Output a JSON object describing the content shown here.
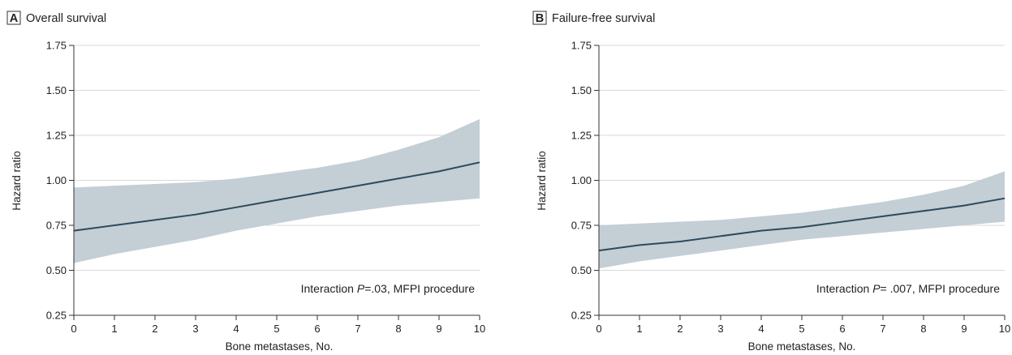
{
  "colors": {
    "band": "#c4ced5",
    "line": "#2d4a5a",
    "grid": "#d9d9d9",
    "axis": "#333333"
  },
  "chart_data": [
    {
      "type": "line",
      "panel_letter": "A",
      "title": "Overall survival",
      "xlabel": "Bone metastases, No.",
      "ylabel": "Hazard ratio",
      "xlim": [
        0,
        10
      ],
      "ylim": [
        0.25,
        1.75
      ],
      "x_ticks": [
        "0",
        "1",
        "2",
        "3",
        "4",
        "5",
        "6",
        "7",
        "8",
        "9",
        "10"
      ],
      "y_ticks": [
        "0.25",
        "0.50",
        "0.75",
        "1.00",
        "1.25",
        "1.50",
        "1.75"
      ],
      "y_tick_values": [
        0.25,
        0.5,
        0.75,
        1.0,
        1.25,
        1.5,
        1.75
      ],
      "grid": "horizontal",
      "annotation_prefix": "Interaction ",
      "annotation_italic": "P",
      "annotation_suffix": "=.03, MFPI procedure",
      "x": [
        0,
        1,
        2,
        3,
        4,
        5,
        6,
        7,
        8,
        9,
        10
      ],
      "estimate": [
        0.72,
        0.75,
        0.78,
        0.81,
        0.85,
        0.89,
        0.93,
        0.97,
        1.01,
        1.05,
        1.1
      ],
      "lower": [
        0.54,
        0.59,
        0.63,
        0.67,
        0.72,
        0.76,
        0.8,
        0.83,
        0.86,
        0.88,
        0.9
      ],
      "upper": [
        0.96,
        0.97,
        0.98,
        0.99,
        1.01,
        1.04,
        1.07,
        1.11,
        1.17,
        1.24,
        1.34
      ]
    },
    {
      "type": "line",
      "panel_letter": "B",
      "title": "Failure-free survival",
      "xlabel": "Bone metastases, No.",
      "ylabel": "Hazard ratio",
      "xlim": [
        0,
        10
      ],
      "ylim": [
        0.25,
        1.75
      ],
      "x_ticks": [
        "0",
        "1",
        "2",
        "3",
        "4",
        "5",
        "6",
        "7",
        "8",
        "9",
        "10"
      ],
      "y_ticks": [
        "0.25",
        "0.50",
        "0.75",
        "1.00",
        "1.25",
        "1.50",
        "1.75"
      ],
      "y_tick_values": [
        0.25,
        0.5,
        0.75,
        1.0,
        1.25,
        1.5,
        1.75
      ],
      "grid": "horizontal",
      "annotation_prefix": "Interaction ",
      "annotation_italic": "P",
      "annotation_suffix": "= .007, MFPI procedure",
      "x": [
        0,
        1,
        2,
        3,
        4,
        5,
        6,
        7,
        8,
        9,
        10
      ],
      "estimate": [
        0.61,
        0.64,
        0.66,
        0.69,
        0.72,
        0.74,
        0.77,
        0.8,
        0.83,
        0.86,
        0.9
      ],
      "lower": [
        0.51,
        0.55,
        0.58,
        0.61,
        0.64,
        0.67,
        0.69,
        0.71,
        0.73,
        0.75,
        0.77
      ],
      "upper": [
        0.75,
        0.76,
        0.77,
        0.78,
        0.8,
        0.82,
        0.85,
        0.88,
        0.92,
        0.97,
        1.05
      ]
    }
  ]
}
